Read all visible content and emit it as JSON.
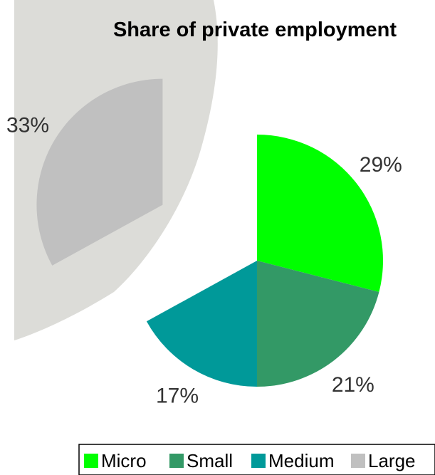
{
  "chart_data": {
    "type": "pie",
    "title": "Share of private employment",
    "categories": [
      "Micro",
      "Small",
      "Medium",
      "Large"
    ],
    "values": [
      29,
      21,
      17,
      33
    ],
    "value_labels": [
      "29%",
      "21%",
      "17%",
      "33%"
    ],
    "colors": [
      "#00ff00",
      "#339966",
      "#009999",
      "#c0c0c0"
    ],
    "exploded": [
      "Large"
    ],
    "legend_position": "bottom-right"
  }
}
